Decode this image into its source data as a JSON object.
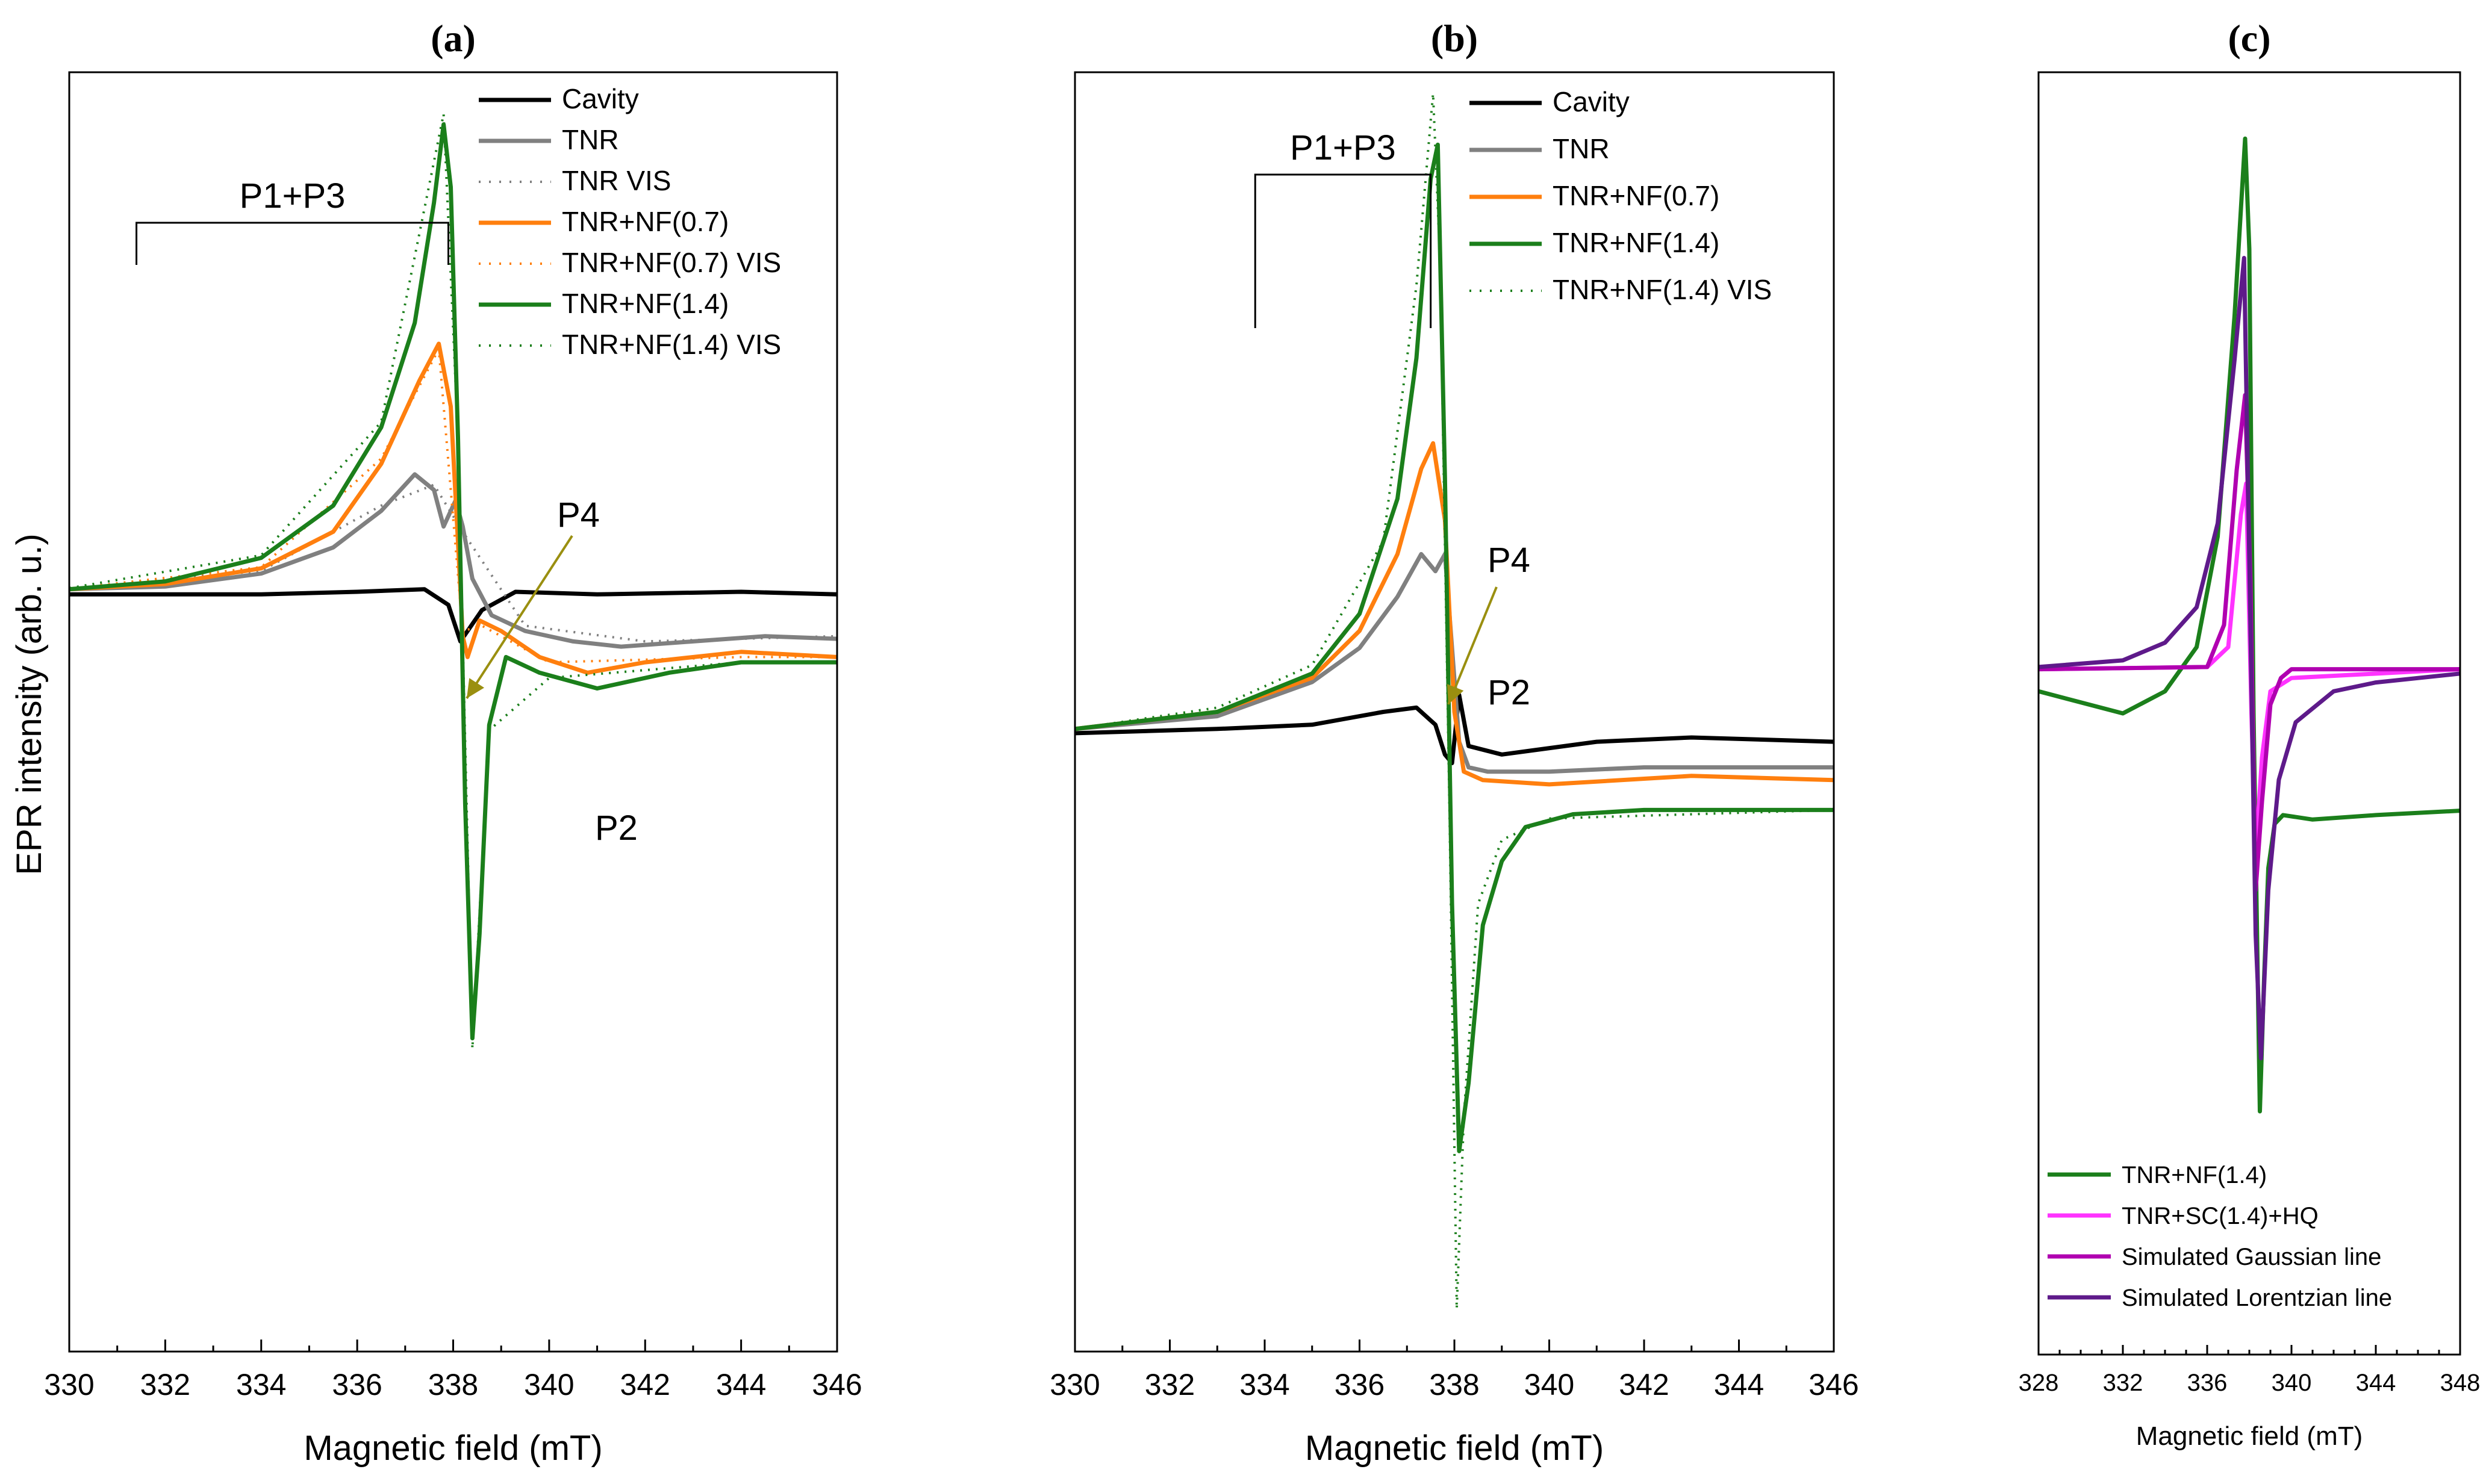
{
  "colors": {
    "cavity": "#000000",
    "tnr": "#808080",
    "tnr_nf07": "#ff7f0e",
    "tnr_nf14": "#1b7f1b",
    "tnr_sc14_hq": "#ff33ff",
    "gaussian": "#b000b0",
    "lorentzian": "#5e1a8a",
    "arrow": "#9a8f10"
  },
  "y_axis_title": "EPR intensity (arb. u.)",
  "chart_data": [
    {
      "id": "a",
      "type": "line",
      "panel_label": "(a)",
      "xlabel": "Magnetic field (mT)",
      "ylabel": "EPR intensity (arb. u.)",
      "xlim": [
        330,
        346
      ],
      "xticks": [
        "330",
        "332",
        "334",
        "336",
        "338",
        "340",
        "342",
        "344",
        "346"
      ],
      "ylim": [
        -1.45,
        1.0
      ],
      "y_ticks_labeled": false,
      "legend": [
        "Cavity",
        "TNR",
        "TNR VIS",
        "TNR+NF(0.7)",
        "TNR+NF(0.7) VIS",
        "TNR+NF(1.4)",
        "TNR+NF(1.4) VIS"
      ],
      "series": [
        {
          "name": "Cavity",
          "color_key": "cavity",
          "style": "solid",
          "x": [
            330,
            334,
            336,
            337.4,
            337.9,
            338.15,
            338.6,
            339.3,
            341,
            344,
            346
          ],
          "y": [
            0,
            0,
            0.005,
            0.01,
            -0.02,
            -0.09,
            -0.03,
            0.005,
            0,
            0.005,
            0
          ]
        },
        {
          "name": "TNR",
          "color_key": "tnr",
          "style": "solid",
          "x": [
            330,
            332,
            334,
            335.5,
            336.5,
            337.2,
            337.6,
            337.8,
            338.05,
            338.2,
            338.4,
            338.8,
            339.5,
            340.5,
            341.5,
            343,
            344.5,
            346
          ],
          "y": [
            0.01,
            0.015,
            0.04,
            0.09,
            0.16,
            0.23,
            0.2,
            0.13,
            0.18,
            0.13,
            0.03,
            -0.04,
            -0.07,
            -0.09,
            -0.1,
            -0.09,
            -0.08,
            -0.085
          ]
        },
        {
          "name": "TNR VIS",
          "color_key": "tnr",
          "style": "dotted",
          "x": [
            330,
            334,
            336.5,
            337.6,
            338.2,
            339.5,
            342,
            346
          ],
          "y": [
            0.012,
            0.045,
            0.17,
            0.21,
            0.12,
            -0.06,
            -0.09,
            -0.08
          ]
        },
        {
          "name": "TNR+NF(0.7)",
          "color_key": "tnr_nf07",
          "style": "solid",
          "x": [
            330,
            332,
            334,
            335.5,
            336.5,
            337.3,
            337.7,
            337.95,
            338.1,
            338.2,
            338.3,
            338.55,
            339,
            339.8,
            340.8,
            342,
            344,
            346
          ],
          "y": [
            0.01,
            0.02,
            0.05,
            0.12,
            0.25,
            0.41,
            0.48,
            0.36,
            0.1,
            -0.08,
            -0.12,
            -0.05,
            -0.07,
            -0.12,
            -0.15,
            -0.13,
            -0.11,
            -0.12
          ]
        },
        {
          "name": "TNR+NF(0.7) VIS",
          "color_key": "tnr_nf07",
          "style": "dotted",
          "x": [
            330,
            334,
            336.5,
            337.7,
            338.2,
            338.6,
            340,
            344,
            346
          ],
          "y": [
            0.011,
            0.052,
            0.26,
            0.47,
            -0.07,
            -0.06,
            -0.13,
            -0.12,
            -0.12
          ]
        },
        {
          "name": "TNR+NF(1.4)",
          "color_key": "tnr_nf14",
          "style": "solid",
          "x": [
            330,
            332,
            334,
            335.5,
            336.5,
            337.2,
            337.6,
            337.8,
            337.95,
            338.1,
            338.25,
            338.4,
            338.55,
            338.75,
            339.1,
            339.8,
            341,
            342.5,
            344,
            346
          ],
          "y": [
            0.01,
            0.025,
            0.07,
            0.17,
            0.32,
            0.52,
            0.75,
            0.9,
            0.78,
            0.3,
            -0.4,
            -0.85,
            -0.65,
            -0.25,
            -0.12,
            -0.15,
            -0.18,
            -0.15,
            -0.13,
            -0.13
          ]
        },
        {
          "name": "TNR+NF(1.4) VIS",
          "color_key": "tnr_nf14",
          "style": "dotted",
          "x": [
            330,
            334,
            336.5,
            337.8,
            338.1,
            338.4,
            338.75,
            340,
            344,
            346
          ],
          "y": [
            0.012,
            0.075,
            0.33,
            0.92,
            0.3,
            -0.87,
            -0.26,
            -0.16,
            -0.13,
            -0.13
          ]
        }
      ],
      "annotations": [
        {
          "text": "P1+P3",
          "type": "bracket",
          "x_start": 331.4,
          "x_end": 337.9
        },
        {
          "text": "P4",
          "type": "arrow",
          "x": 338.2
        },
        {
          "text": "P2",
          "type": "label",
          "x": 341.4
        }
      ]
    },
    {
      "id": "b",
      "type": "line",
      "panel_label": "(b)",
      "xlabel": "Magnetic field (mT)",
      "ylabel": "",
      "xlim": [
        330,
        346
      ],
      "xticks": [
        "330",
        "332",
        "334",
        "336",
        "338",
        "340",
        "342",
        "344",
        "346"
      ],
      "ylim": [
        -1.45,
        1.55
      ],
      "y_ticks_labeled": false,
      "legend": [
        "Cavity",
        "TNR",
        "TNR+NF(0.7)",
        "TNR+NF(1.4)",
        "TNR+NF(1.4) VIS"
      ],
      "series": [
        {
          "name": "Cavity",
          "color_key": "cavity",
          "style": "solid",
          "x": [
            330,
            333,
            335,
            336.5,
            337.2,
            337.6,
            337.8,
            337.95,
            338.1,
            338.3,
            339,
            341,
            343,
            346
          ],
          "y": [
            0,
            0.01,
            0.02,
            0.05,
            0.06,
            0.02,
            -0.05,
            -0.07,
            0.09,
            -0.03,
            -0.05,
            -0.02,
            -0.01,
            -0.02
          ]
        },
        {
          "name": "TNR",
          "color_key": "tnr",
          "style": "solid",
          "x": [
            330,
            333,
            335,
            336,
            336.8,
            337.3,
            337.6,
            337.8,
            337.95,
            338.1,
            338.3,
            338.7,
            340,
            342,
            346
          ],
          "y": [
            0.01,
            0.04,
            0.12,
            0.2,
            0.32,
            0.42,
            0.38,
            0.42,
            0.2,
            -0.02,
            -0.08,
            -0.09,
            -0.09,
            -0.08,
            -0.08
          ]
        },
        {
          "name": "TNR+NF(0.7)",
          "color_key": "tnr_nf07",
          "style": "solid",
          "x": [
            330,
            333,
            335,
            336,
            336.8,
            337.3,
            337.55,
            337.8,
            338,
            338.2,
            338.6,
            340,
            343,
            346
          ],
          "y": [
            0.01,
            0.05,
            0.13,
            0.24,
            0.42,
            0.62,
            0.68,
            0.5,
            0.05,
            -0.09,
            -0.11,
            -0.12,
            -0.1,
            -0.11
          ]
        },
        {
          "name": "TNR+NF(1.4)",
          "color_key": "tnr_nf14",
          "style": "solid",
          "x": [
            330,
            333,
            335,
            336,
            336.8,
            337.2,
            337.5,
            337.65,
            337.8,
            337.95,
            338.1,
            338.3,
            338.6,
            339,
            339.5,
            340.5,
            342,
            346
          ],
          "y": [
            0.01,
            0.05,
            0.14,
            0.28,
            0.55,
            0.88,
            1.3,
            1.38,
            0.6,
            -0.4,
            -0.98,
            -0.82,
            -0.45,
            -0.3,
            -0.22,
            -0.19,
            -0.18,
            -0.18
          ]
        },
        {
          "name": "TNR+NF(1.4) VIS",
          "color_key": "tnr_nf14",
          "style": "dotted",
          "x": [
            330,
            333,
            335,
            336.5,
            337.2,
            337.55,
            337.7,
            337.9,
            338.05,
            338.2,
            338.5,
            339,
            340,
            346
          ],
          "y": [
            0.01,
            0.06,
            0.16,
            0.45,
            1.05,
            1.5,
            1.1,
            -0.2,
            -1.35,
            -0.9,
            -0.4,
            -0.25,
            -0.2,
            -0.18
          ]
        }
      ],
      "annotations": [
        {
          "text": "P1+P3",
          "type": "bracket",
          "x_start": 333.8,
          "x_end": 337.5
        },
        {
          "text": "P4",
          "type": "arrow",
          "x": 337.95
        },
        {
          "text": "P2",
          "type": "label",
          "x": 338.7
        }
      ]
    },
    {
      "id": "c",
      "type": "line",
      "panel_label": "(c)",
      "xlabel": "Magnetic field (mT)",
      "ylabel": "",
      "xlim": [
        328,
        348
      ],
      "xticks": [
        "328",
        "332",
        "336",
        "340",
        "344",
        "348"
      ],
      "ylim": [
        -1.55,
        1.35
      ],
      "y_ticks_labeled": false,
      "legend": [
        "TNR+NF(1.4)",
        "TNR+SC(1.4)+HQ",
        "Simulated Gaussian line",
        "Simulated Lorentzian line"
      ],
      "series": [
        {
          "name": "TNR+NF(1.4)",
          "color_key": "tnr_nf14",
          "style": "solid",
          "x": [
            328,
            332,
            334,
            335.5,
            336.5,
            337.3,
            337.8,
            338,
            338.2,
            338.5,
            338.7,
            338.9,
            339.2,
            339.6,
            341,
            344,
            348
          ],
          "y": [
            -0.05,
            -0.1,
            -0.05,
            0.05,
            0.3,
            0.8,
            1.2,
            0.95,
            -0.1,
            -1.0,
            -0.7,
            -0.45,
            -0.35,
            -0.33,
            -0.34,
            -0.33,
            -0.32
          ]
        },
        {
          "name": "TNR+SC(1.4)+HQ",
          "color_key": "tnr_sc14_hq",
          "style": "solid",
          "x": [
            328,
            336,
            337,
            337.6,
            337.85,
            338.1,
            338.3,
            338.6,
            339,
            340,
            348
          ],
          "y": [
            0,
            0.005,
            0.05,
            0.35,
            0.42,
            -0.1,
            -0.42,
            -0.2,
            -0.05,
            -0.02,
            0
          ]
        },
        {
          "name": "Simulated Gaussian line",
          "color_key": "gaussian",
          "style": "solid",
          "x": [
            328,
            336,
            336.8,
            337.4,
            337.8,
            338.05,
            338.3,
            338.6,
            339,
            339.5,
            340,
            348
          ],
          "y": [
            0,
            0.005,
            0.1,
            0.45,
            0.62,
            0.2,
            -0.5,
            -0.3,
            -0.08,
            -0.02,
            0,
            0
          ]
        },
        {
          "name": "Simulated Lorentzian line",
          "color_key": "lorentzian",
          "style": "solid",
          "x": [
            328,
            332,
            334,
            335.5,
            336.5,
            337.3,
            337.75,
            338.05,
            338.3,
            338.55,
            338.9,
            339.4,
            340.2,
            342,
            344,
            348
          ],
          "y": [
            0.005,
            0.02,
            0.06,
            0.14,
            0.33,
            0.7,
            0.93,
            0.1,
            -0.6,
            -0.88,
            -0.5,
            -0.25,
            -0.12,
            -0.05,
            -0.03,
            -0.01
          ]
        }
      ],
      "annotations": []
    }
  ]
}
